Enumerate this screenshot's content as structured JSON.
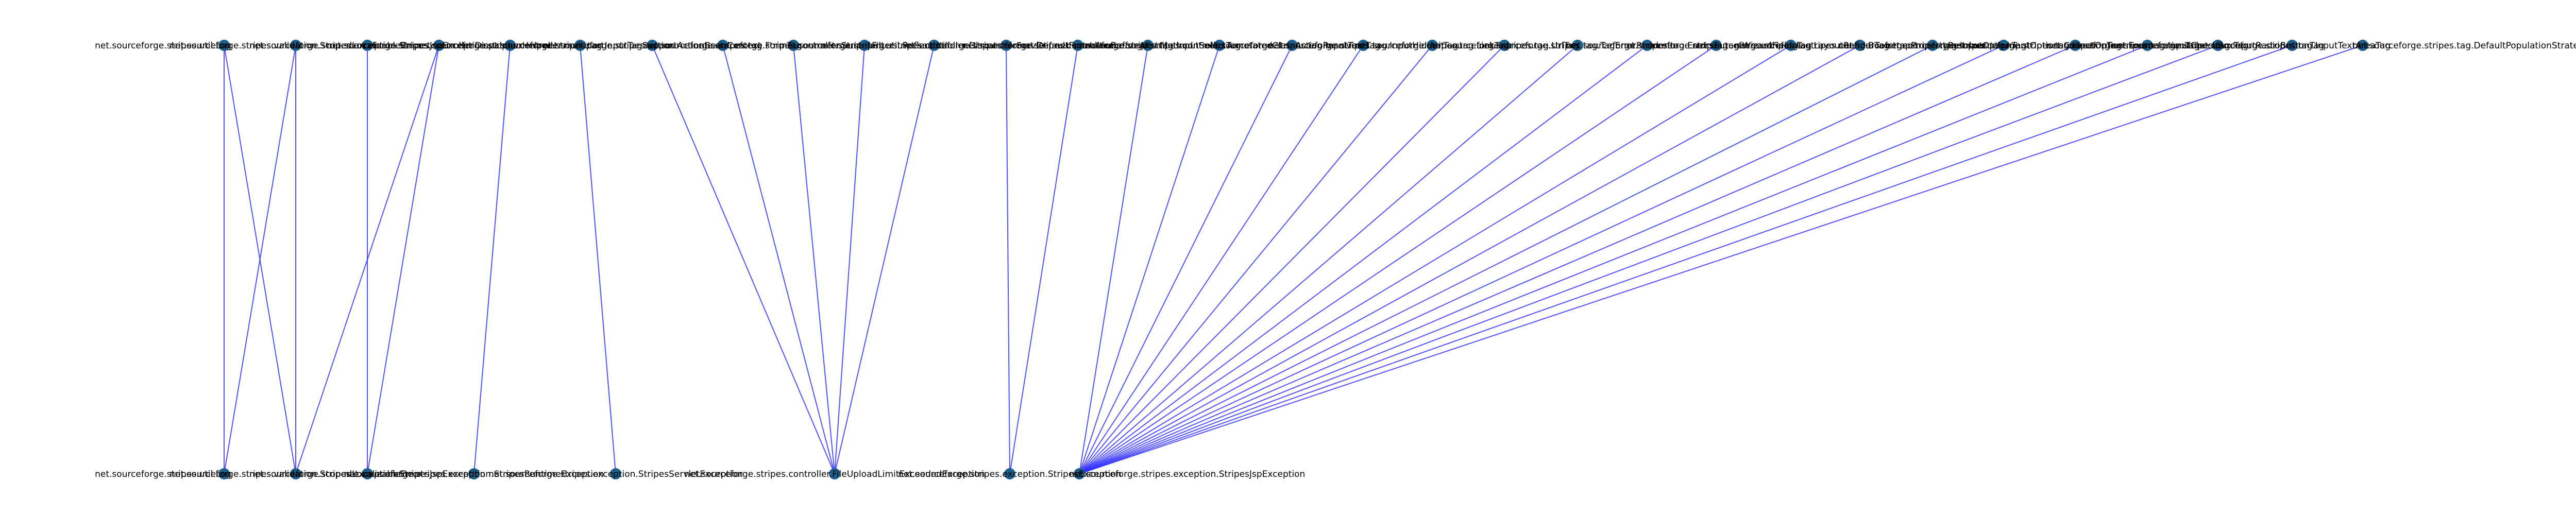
{
  "diagram": {
    "type": "bipartite-dependency-graph",
    "colors": {
      "edge": "#3333ff",
      "node": "#1f5f8b",
      "label": "#000000",
      "background": "#ffffff"
    },
    "top_nodes": [
      {
        "id": "t1",
        "label": "net.sourceforge.stripes.util.Log"
      },
      {
        "id": "t2",
        "label": "net.sourceforge.stripes.validation.ScopedLocalizableError"
      },
      {
        "id": "t3",
        "label": "net.sourceforge.stripes.exception.StripesJspException"
      },
      {
        "id": "t4",
        "label": "net.sourceforge.stripes.controller.DispatcherHelper"
      },
      {
        "id": "t5",
        "label": "net.sourceforge.stripes.controller.multipart"
      },
      {
        "id": "t6",
        "label": "net.sourceforge.stripes.tag.InputTagSupport"
      },
      {
        "id": "t7",
        "label": "net.sourceforge.stripes.action.ActionBeanContext"
      },
      {
        "id": "t8",
        "label": "net.sourceforge.stripes.tag.FormTag"
      },
      {
        "id": "t9",
        "label": "net.sourceforge.stripes.controller.StripesFilter"
      },
      {
        "id": "t10",
        "label": "net.sourceforge.stripes.util.ReflectUtil"
      },
      {
        "id": "t11",
        "label": "net.sourceforge.stripes.controller.DispatcherServlet"
      },
      {
        "id": "t12",
        "label": "net.sourceforge.stripes.format.DefaultFormatter"
      },
      {
        "id": "t13",
        "label": "net.sourceforge.stripes.controller.BeforeAfterMethod"
      },
      {
        "id": "t14",
        "label": "net.sourceforge.stripes.tag.InputSelectTag"
      },
      {
        "id": "t15",
        "label": "net.sourceforge.stripes.controller.AnnotatedClassActionResolver"
      },
      {
        "id": "t16",
        "label": "net.sourceforge.stripes.tag.InputTextTag"
      },
      {
        "id": "t17",
        "label": "net.sourceforge.stripes.tag.InputHiddenTag"
      },
      {
        "id": "t18",
        "label": "net.sourceforge.stripes.tag.LinkTag"
      },
      {
        "id": "t19",
        "label": "net.sourceforge.stripes.tag.UrlTag"
      },
      {
        "id": "t20",
        "label": "net.sourceforge.stripes.tag.TagErrorRenderer"
      },
      {
        "id": "t21",
        "label": "net.sourceforge.stripes.tag.ErrorsTag"
      },
      {
        "id": "t22",
        "label": "net.sourceforge.stripes.tag.WizardFieldsTag"
      },
      {
        "id": "t23",
        "label": "net.sourceforge.stripes.tag.LayoutRenderTag"
      },
      {
        "id": "t24",
        "label": "net.sourceforge.stripes.config.BootstrapPropertyResolver"
      },
      {
        "id": "t25",
        "label": "net.sourceforge.stripes.tag.InputOptionTag"
      },
      {
        "id": "t26",
        "label": "net.sourceforge.stripes.tag.InputOptionsCollectionTag"
      },
      {
        "id": "t27",
        "label": "net.sourceforge.stripes.tag.InputOptionsEnumerationTag"
      },
      {
        "id": "t28",
        "label": "net.sourceforge.stripes.tag.InputCheckBoxTag"
      },
      {
        "id": "t29",
        "label": "net.sourceforge.stripes.tag.InputRadioButtonTag"
      },
      {
        "id": "t30",
        "label": "net.sourceforge.stripes.tag.InputTextAreaTag"
      },
      {
        "id": "t31",
        "label": "net.sourceforge.stripes.tag.DefaultPopulationStrategy"
      }
    ],
    "bottom_nodes": [
      {
        "id": "b1",
        "label": "net.sourceforge.stripes.util.Log"
      },
      {
        "id": "b2",
        "label": "net.sourceforge.stripes.validation.ScopedLocalizableError"
      },
      {
        "id": "b3",
        "label": "net.sourceforge.stripes.exception.StripesJspException"
      },
      {
        "id": "b4",
        "label": "net.sourceforge.stripes.exception.StripesRuntimeException"
      },
      {
        "id": "b5",
        "label": "net.sourceforge.stripes.exception.StripesServletException"
      },
      {
        "id": "b6",
        "label": "net.sourceforge.stripes.controller.FileUploadLimitExceededException"
      },
      {
        "id": "b7",
        "label": "net.sourceforge.stripes.exception.StripesException"
      },
      {
        "id": "b8",
        "label": "net.sourceforge.stripes.exception.StripesJspException"
      }
    ],
    "edges": [
      [
        "t1",
        "b1"
      ],
      [
        "t1",
        "b2"
      ],
      [
        "t2",
        "b1"
      ],
      [
        "t2",
        "b2"
      ],
      [
        "t3",
        "b3"
      ],
      [
        "t4",
        "b2"
      ],
      [
        "t4",
        "b3"
      ],
      [
        "t5",
        "b4"
      ],
      [
        "t6",
        "b5"
      ],
      [
        "t7",
        "b6"
      ],
      [
        "t8",
        "b6"
      ],
      [
        "t9",
        "b6"
      ],
      [
        "t10",
        "b6"
      ],
      [
        "t11",
        "b6"
      ],
      [
        "t12",
        "b7"
      ],
      [
        "t13",
        "b7"
      ],
      [
        "t14",
        "b8"
      ],
      [
        "t15",
        "b8"
      ],
      [
        "t16",
        "b8"
      ],
      [
        "t17",
        "b8"
      ],
      [
        "t18",
        "b8"
      ],
      [
        "t19",
        "b8"
      ],
      [
        "t20",
        "b8"
      ],
      [
        "t21",
        "b8"
      ],
      [
        "t22",
        "b8"
      ],
      [
        "t23",
        "b8"
      ],
      [
        "t24",
        "b8"
      ],
      [
        "t25",
        "b8"
      ],
      [
        "t26",
        "b8"
      ],
      [
        "t27",
        "b8"
      ],
      [
        "t28",
        "b8"
      ],
      [
        "t29",
        "b8"
      ],
      [
        "t30",
        "b8"
      ],
      [
        "t31",
        "b8"
      ]
    ]
  }
}
